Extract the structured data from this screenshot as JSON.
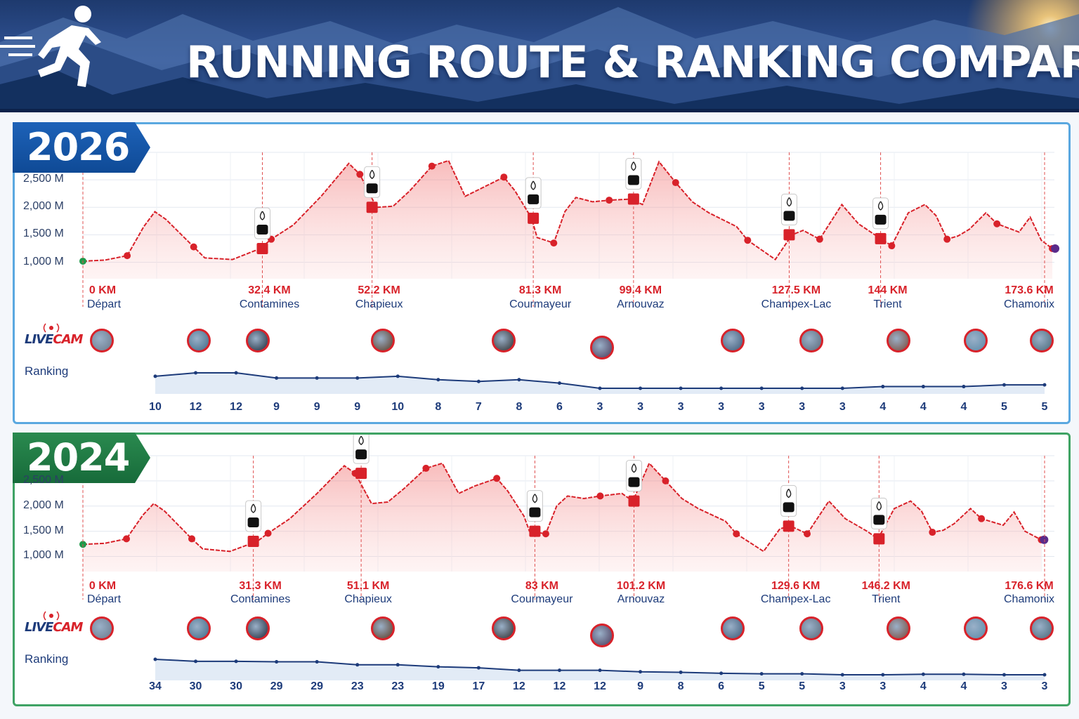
{
  "header": {
    "title": "RUNNING ROUTE & RANKING COMPARISON"
  },
  "colors": {
    "profile": "#d8222a",
    "rank": "#1d3b7a",
    "blue": "#1d62b8",
    "green": "#2a8a4f"
  },
  "legend": {
    "live_word": "LIVE",
    "cam_word": "CAM",
    "ranking_label": "Ranking"
  },
  "chart_data": [
    {
      "type": "area",
      "year": "2026",
      "ylabel_ticks": [
        "2,500 M",
        "2,000 M",
        "1,500 M",
        "1,000 M"
      ],
      "ylim": [
        700,
        3000
      ],
      "checkpoints": [
        {
          "km_label": "0 KM",
          "name": "Départ",
          "km": 0
        },
        {
          "km_label": "32.4 KM",
          "name": "Contamines",
          "km": 32.4
        },
        {
          "km_label": "52.2 KM",
          "name": "Chapieux",
          "km": 52.2
        },
        {
          "km_label": "81.3 KM",
          "name": "Courmayeur",
          "km": 81.3
        },
        {
          "km_label": "99.4 KM",
          "name": "Arnouvaz",
          "km": 99.4
        },
        {
          "km_label": "127.5 KM",
          "name": "Champex-Lac",
          "km": 127.5
        },
        {
          "km_label": "144 KM",
          "name": "Trient",
          "km": 144
        },
        {
          "km_label": "173.6 KM",
          "name": "Chamonix",
          "km": 173.6
        }
      ],
      "ranking": [
        "10",
        "12",
        "12",
        "9",
        "9",
        "9",
        "10",
        "8",
        "7",
        "8",
        "6",
        "3",
        "3",
        "3",
        "3",
        "3",
        "3",
        "3",
        "4",
        "4",
        "4",
        "5",
        "5"
      ],
      "elevation": [
        [
          0,
          1020
        ],
        [
          4,
          1040
        ],
        [
          8,
          1120
        ],
        [
          11,
          1650
        ],
        [
          13,
          1920
        ],
        [
          15,
          1780
        ],
        [
          20,
          1280
        ],
        [
          22,
          1080
        ],
        [
          27,
          1050
        ],
        [
          32,
          1250
        ],
        [
          34,
          1420
        ],
        [
          38,
          1680
        ],
        [
          43,
          2200
        ],
        [
          48,
          2800
        ],
        [
          50,
          2600
        ],
        [
          53,
          2000
        ],
        [
          56,
          2020
        ],
        [
          59,
          2300
        ],
        [
          63,
          2750
        ],
        [
          66,
          2850
        ],
        [
          69,
          2200
        ],
        [
          72,
          2350
        ],
        [
          76,
          2550
        ],
        [
          78,
          2300
        ],
        [
          81,
          1800
        ],
        [
          82,
          1450
        ],
        [
          85,
          1350
        ],
        [
          87,
          1920
        ],
        [
          89,
          2180
        ],
        [
          92,
          2100
        ],
        [
          95,
          2130
        ],
        [
          99,
          2150
        ],
        [
          101,
          2050
        ],
        [
          104,
          2830
        ],
        [
          107,
          2450
        ],
        [
          110,
          2100
        ],
        [
          113,
          1900
        ],
        [
          118,
          1650
        ],
        [
          120,
          1400
        ],
        [
          125,
          1050
        ],
        [
          128,
          1500
        ],
        [
          130,
          1580
        ],
        [
          133,
          1420
        ],
        [
          137,
          2050
        ],
        [
          140,
          1700
        ],
        [
          144,
          1430
        ],
        [
          146,
          1300
        ],
        [
          149,
          1900
        ],
        [
          152,
          2050
        ],
        [
          154,
          1850
        ],
        [
          156,
          1420
        ],
        [
          158,
          1480
        ],
        [
          160,
          1600
        ],
        [
          163,
          1900
        ],
        [
          165,
          1700
        ],
        [
          169,
          1550
        ],
        [
          171,
          1820
        ],
        [
          173,
          1400
        ],
        [
          175,
          1250
        ]
      ]
    },
    {
      "type": "area",
      "year": "2024",
      "ylabel_ticks": [
        "2,500 M",
        "2,000 M",
        "1,500 M",
        "1,000 M"
      ],
      "ylim": [
        700,
        3000
      ],
      "checkpoints": [
        {
          "km_label": "0 KM",
          "name": "Départ",
          "km": 0
        },
        {
          "km_label": "31.3 KM",
          "name": "Contamines",
          "km": 31.3
        },
        {
          "km_label": "51.1 KM",
          "name": "Chapieux",
          "km": 51.1
        },
        {
          "km_label": "83 KM",
          "name": "Courmayeur",
          "km": 83
        },
        {
          "km_label": "101.2 KM",
          "name": "Arnouvaz",
          "km": 101.2
        },
        {
          "km_label": "129.6 KM",
          "name": "Champex-Lac",
          "km": 129.6
        },
        {
          "km_label": "146.2 KM",
          "name": "Trient",
          "km": 146.2
        },
        {
          "km_label": "176.6 KM",
          "name": "Chamonix",
          "km": 176.6
        }
      ],
      "ranking": [
        "34",
        "30",
        "30",
        "29",
        "29",
        "23",
        "23",
        "19",
        "17",
        "12",
        "12",
        "12",
        "9",
        "8",
        "6",
        "5",
        "5",
        "3",
        "3",
        "4",
        "4",
        "3",
        "3"
      ],
      "elevation": [
        [
          0,
          1240
        ],
        [
          4,
          1260
        ],
        [
          8,
          1350
        ],
        [
          11,
          1820
        ],
        [
          13,
          2050
        ],
        [
          15,
          1900
        ],
        [
          20,
          1350
        ],
        [
          22,
          1150
        ],
        [
          27,
          1100
        ],
        [
          32,
          1300
        ],
        [
          34,
          1460
        ],
        [
          38,
          1750
        ],
        [
          43,
          2250
        ],
        [
          48,
          2800
        ],
        [
          50,
          2650
        ],
        [
          53,
          2050
        ],
        [
          56,
          2080
        ],
        [
          59,
          2350
        ],
        [
          63,
          2750
        ],
        [
          66,
          2850
        ],
        [
          69,
          2250
        ],
        [
          72,
          2400
        ],
        [
          76,
          2550
        ],
        [
          78,
          2300
        ],
        [
          81,
          1800
        ],
        [
          82,
          1500
        ],
        [
          85,
          1450
        ],
        [
          87,
          2000
        ],
        [
          89,
          2200
        ],
        [
          92,
          2150
        ],
        [
          95,
          2200
        ],
        [
          99,
          2250
        ],
        [
          101,
          2100
        ],
        [
          104,
          2850
        ],
        [
          107,
          2500
        ],
        [
          110,
          2150
        ],
        [
          113,
          1950
        ],
        [
          118,
          1700
        ],
        [
          120,
          1450
        ],
        [
          125,
          1100
        ],
        [
          128,
          1550
        ],
        [
          130,
          1600
        ],
        [
          133,
          1450
        ],
        [
          137,
          2100
        ],
        [
          140,
          1750
        ],
        [
          144,
          1500
        ],
        [
          146,
          1350
        ],
        [
          149,
          1950
        ],
        [
          152,
          2100
        ],
        [
          154,
          1900
        ],
        [
          156,
          1480
        ],
        [
          158,
          1520
        ],
        [
          160,
          1650
        ],
        [
          163,
          1950
        ],
        [
          165,
          1750
        ],
        [
          169,
          1620
        ],
        [
          171,
          1880
        ],
        [
          173,
          1500
        ],
        [
          176,
          1330
        ]
      ]
    }
  ]
}
